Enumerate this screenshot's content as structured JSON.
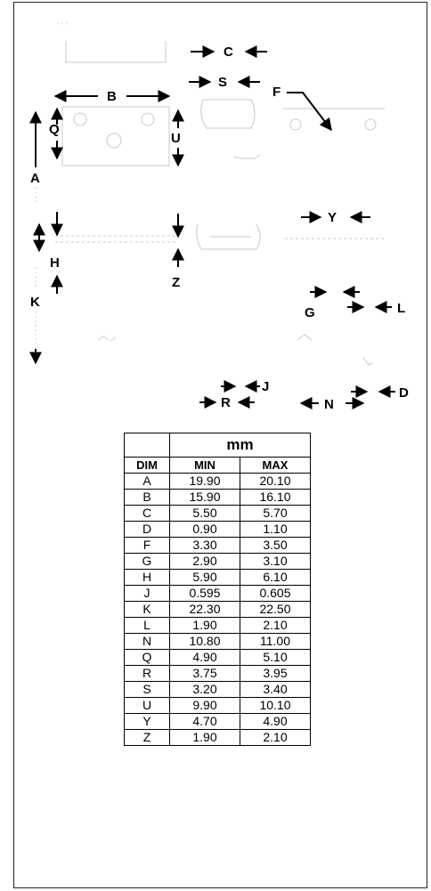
{
  "diagram": {
    "labels": {
      "A": "A",
      "B": "B",
      "C": "C",
      "D": "D",
      "F": "F",
      "G": "G",
      "H": "H",
      "J": "J",
      "K": "K",
      "L": "L",
      "N": "N",
      "Q": "Q",
      "R": "R",
      "S": "S",
      "U": "U",
      "Y": "Y",
      "Z": "Z"
    }
  },
  "table": {
    "unit": "mm",
    "headers": {
      "dim": "DIM",
      "min": "MIN",
      "max": "MAX"
    },
    "rows": [
      {
        "dim": "A",
        "min": "19.90",
        "max": "20.10"
      },
      {
        "dim": "B",
        "min": "15.90",
        "max": "16.10"
      },
      {
        "dim": "C",
        "min": "5.50",
        "max": "5.70"
      },
      {
        "dim": "D",
        "min": "0.90",
        "max": "1.10"
      },
      {
        "dim": "F",
        "min": "3.30",
        "max": "3.50"
      },
      {
        "dim": "G",
        "min": "2.90",
        "max": "3.10"
      },
      {
        "dim": "H",
        "min": "5.90",
        "max": "6.10"
      },
      {
        "dim": "J",
        "min": "0.595",
        "max": "0.605"
      },
      {
        "dim": "K",
        "min": "22.30",
        "max": "22.50"
      },
      {
        "dim": "L",
        "min": "1.90",
        "max": "2.10"
      },
      {
        "dim": "N",
        "min": "10.80",
        "max": "11.00"
      },
      {
        "dim": "Q",
        "min": "4.90",
        "max": "5.10"
      },
      {
        "dim": "R",
        "min": "3.75",
        "max": "3.95"
      },
      {
        "dim": "S",
        "min": "3.20",
        "max": "3.40"
      },
      {
        "dim": "U",
        "min": "9.90",
        "max": "10.10"
      },
      {
        "dim": "Y",
        "min": "4.70",
        "max": "4.90"
      },
      {
        "dim": "Z",
        "min": "1.90",
        "max": "2.10"
      }
    ]
  }
}
